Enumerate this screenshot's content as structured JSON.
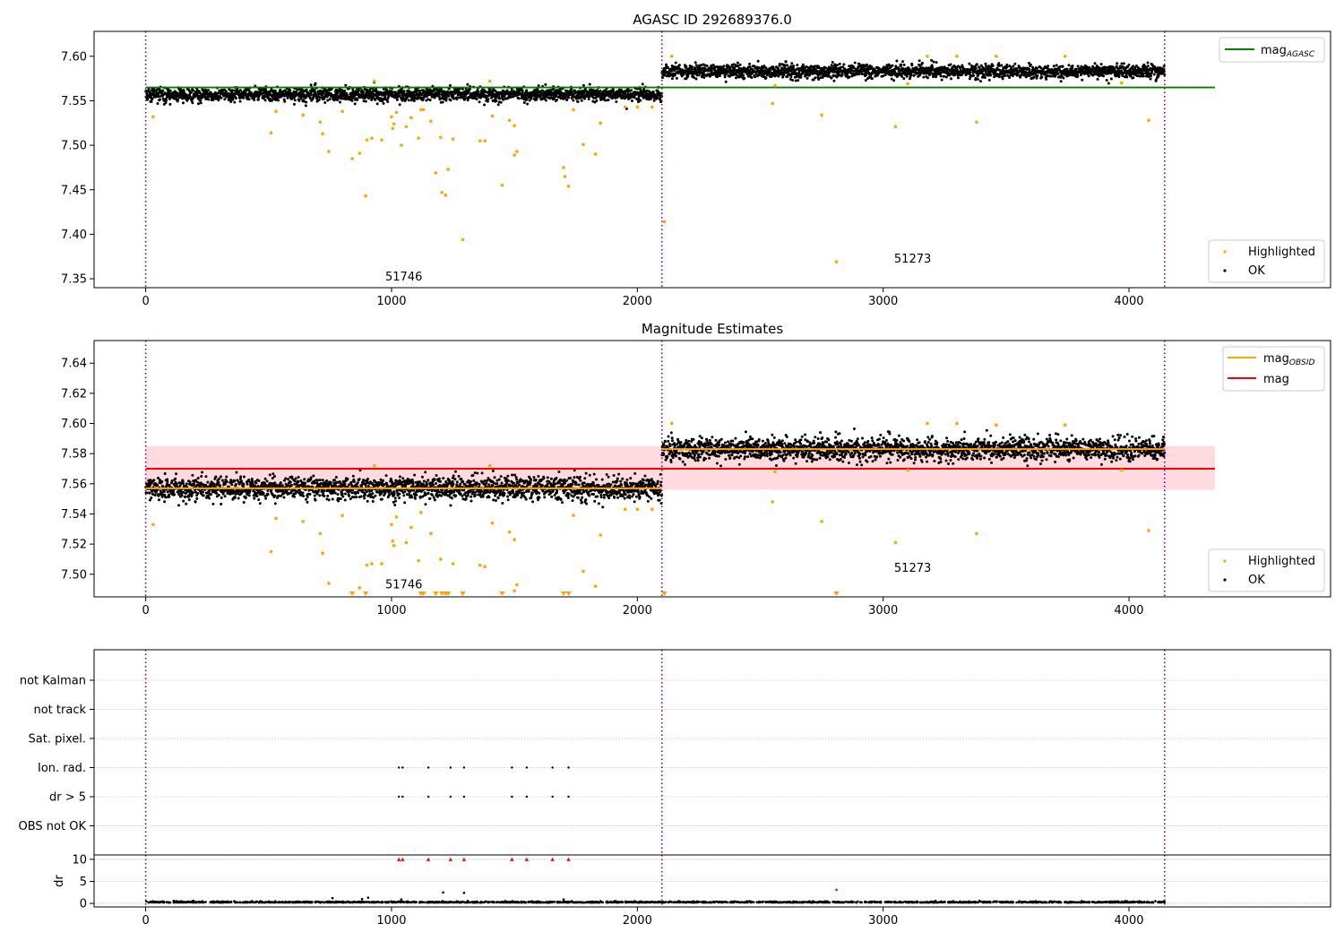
{
  "chart_data": [
    {
      "panel": "top",
      "type": "scatter",
      "title": "AGASC ID 292689376.0",
      "xlim": [
        -210,
        4820
      ],
      "ylim": [
        7.34,
        7.628
      ],
      "x_ticks": [
        0,
        1000,
        2000,
        3000,
        4000
      ],
      "y_ticks": [
        7.35,
        7.4,
        7.45,
        7.5,
        7.55,
        7.6
      ],
      "grid": false,
      "segments": [
        {
          "x_start": 0,
          "x_end": 2100,
          "ok_center": 7.557,
          "ok_spread": 0.0065,
          "label": "51746",
          "label_x": 1050,
          "label_y": 7.352
        },
        {
          "x_start": 2100,
          "x_end": 4145,
          "ok_center": 7.583,
          "ok_spread": 0.0065,
          "label": "51273",
          "label_x": 3120,
          "label_y": 7.372
        }
      ],
      "observation_boundaries": [
        0,
        2100,
        4145
      ],
      "lines": [
        {
          "name": "mag_AGASC",
          "y": 7.565,
          "x_range": [
            0,
            4350
          ],
          "color": "#008000"
        }
      ],
      "highlighted_points": [
        [
          30,
          7.532
        ],
        [
          510,
          7.514
        ],
        [
          530,
          7.538
        ],
        [
          640,
          7.534
        ],
        [
          710,
          7.526
        ],
        [
          720,
          7.513
        ],
        [
          745,
          7.493
        ],
        [
          800,
          7.538
        ],
        [
          840,
          7.485
        ],
        [
          870,
          7.491
        ],
        [
          895,
          7.443
        ],
        [
          900,
          7.506
        ],
        [
          920,
          7.508
        ],
        [
          930,
          7.572
        ],
        [
          960,
          7.506
        ],
        [
          1000,
          7.532
        ],
        [
          1005,
          7.519
        ],
        [
          1010,
          7.524
        ],
        [
          1020,
          7.537
        ],
        [
          1040,
          7.5
        ],
        [
          1060,
          7.521
        ],
        [
          1080,
          7.531
        ],
        [
          1110,
          7.508
        ],
        [
          1120,
          7.54
        ],
        [
          1130,
          7.54
        ],
        [
          1160,
          7.527
        ],
        [
          1180,
          7.469
        ],
        [
          1200,
          7.509
        ],
        [
          1205,
          7.447
        ],
        [
          1220,
          7.444
        ],
        [
          1230,
          7.473
        ],
        [
          1250,
          7.507
        ],
        [
          1290,
          7.394
        ],
        [
          1360,
          7.505
        ],
        [
          1380,
          7.505
        ],
        [
          1400,
          7.572
        ],
        [
          1410,
          7.533
        ],
        [
          1450,
          7.455
        ],
        [
          1480,
          7.528
        ],
        [
          1500,
          7.522
        ],
        [
          1500,
          7.489
        ],
        [
          1510,
          7.493
        ],
        [
          1700,
          7.475
        ],
        [
          1705,
          7.465
        ],
        [
          1720,
          7.454
        ],
        [
          1740,
          7.54
        ],
        [
          1780,
          7.501
        ],
        [
          1830,
          7.49
        ],
        [
          1850,
          7.525
        ],
        [
          1950,
          7.543
        ],
        [
          2000,
          7.543
        ],
        [
          2060,
          7.543
        ],
        [
          2110,
          7.414
        ],
        [
          2140,
          7.6
        ],
        [
          2550,
          7.547
        ],
        [
          2560,
          7.567
        ],
        [
          2750,
          7.534
        ],
        [
          2810,
          7.369
        ],
        [
          3050,
          7.521
        ],
        [
          3100,
          7.569
        ],
        [
          3180,
          7.6
        ],
        [
          3300,
          7.6
        ],
        [
          3380,
          7.526
        ],
        [
          3460,
          7.6
        ],
        [
          3740,
          7.6
        ],
        [
          3970,
          7.57
        ],
        [
          4080,
          7.528
        ]
      ],
      "legend": {
        "position": "top-right",
        "entries": [
          {
            "label": "mag",
            "subscript": "AGASC",
            "color": "#008000"
          }
        ]
      },
      "legend2": {
        "position": "bottom-right",
        "entries": [
          {
            "label": "Highlighted",
            "color": "#ffa500"
          },
          {
            "label": "OK",
            "color": "#000000"
          }
        ]
      }
    },
    {
      "panel": "middle",
      "type": "scatter",
      "title": "Magnitude Estimates",
      "xlim": [
        -210,
        4820
      ],
      "ylim": [
        7.485,
        7.655
      ],
      "x_ticks": [
        0,
        1000,
        2000,
        3000,
        4000
      ],
      "y_ticks": [
        7.5,
        7.52,
        7.54,
        7.56,
        7.58,
        7.6,
        7.62,
        7.64
      ],
      "grid": false,
      "segments": [
        {
          "x_start": 0,
          "x_end": 2100,
          "ok_center": 7.557,
          "ok_spread": 0.0065,
          "label": "51746",
          "label_x": 1050,
          "label_y": 7.493
        },
        {
          "x_start": 2100,
          "x_end": 4145,
          "ok_center": 7.583,
          "ok_spread": 0.0065,
          "label": "51273",
          "label_x": 3120,
          "label_y": 7.504
        }
      ],
      "observation_boundaries": [
        0,
        2100,
        4145
      ],
      "lines": [
        {
          "name": "mag_OBSID",
          "y": 7.557,
          "x_range": [
            0,
            2100
          ],
          "color": "#ffa500"
        },
        {
          "name": "mag_OBSID",
          "y": 7.583,
          "x_range": [
            2100,
            4145
          ],
          "color": "#ffa500"
        },
        {
          "name": "mag",
          "y": 7.57,
          "x_range": [
            0,
            4350
          ],
          "color": "#ff0000",
          "band": [
            7.556,
            7.585
          ]
        }
      ],
      "highlighted_points": [
        [
          30,
          7.533
        ],
        [
          510,
          7.515
        ],
        [
          530,
          7.537
        ],
        [
          640,
          7.535
        ],
        [
          710,
          7.527
        ],
        [
          720,
          7.514
        ],
        [
          745,
          7.494
        ],
        [
          800,
          7.539
        ],
        [
          870,
          7.491
        ],
        [
          900,
          7.506
        ],
        [
          920,
          7.507
        ],
        [
          930,
          7.572
        ],
        [
          960,
          7.507
        ],
        [
          1000,
          7.533
        ],
        [
          1005,
          7.522
        ],
        [
          1010,
          7.519
        ],
        [
          1020,
          7.538
        ],
        [
          1060,
          7.521
        ],
        [
          1080,
          7.531
        ],
        [
          1110,
          7.509
        ],
        [
          1120,
          7.541
        ],
        [
          1160,
          7.527
        ],
        [
          1200,
          7.51
        ],
        [
          1250,
          7.507
        ],
        [
          1360,
          7.506
        ],
        [
          1380,
          7.505
        ],
        [
          1400,
          7.572
        ],
        [
          1410,
          7.534
        ],
        [
          1480,
          7.528
        ],
        [
          1500,
          7.523
        ],
        [
          1500,
          7.489
        ],
        [
          1510,
          7.493
        ],
        [
          1740,
          7.539
        ],
        [
          1780,
          7.502
        ],
        [
          1830,
          7.492
        ],
        [
          1850,
          7.526
        ],
        [
          1950,
          7.543
        ],
        [
          2000,
          7.543
        ],
        [
          2060,
          7.543
        ],
        [
          2140,
          7.6
        ],
        [
          2550,
          7.548
        ],
        [
          2560,
          7.568
        ],
        [
          2750,
          7.535
        ],
        [
          3050,
          7.521
        ],
        [
          3100,
          7.569
        ],
        [
          3180,
          7.6
        ],
        [
          3300,
          7.6
        ],
        [
          3380,
          7.527
        ],
        [
          3460,
          7.599
        ],
        [
          3740,
          7.599
        ],
        [
          3970,
          7.569
        ],
        [
          4080,
          7.529
        ]
      ],
      "clipped_points_x": [
        840,
        895,
        1120,
        1130,
        1180,
        1205,
        1220,
        1230,
        1290,
        1450,
        1700,
        1720,
        2110,
        2810
      ],
      "legend": {
        "position": "top-right",
        "entries": [
          {
            "label": "mag",
            "subscript": "OBSID",
            "color": "#ffa500"
          },
          {
            "label": "mag",
            "color": "#ff0000"
          }
        ]
      },
      "legend2": {
        "position": "bottom-right",
        "entries": [
          {
            "label": "Highlighted",
            "color": "#ffa500"
          },
          {
            "label": "OK",
            "color": "#000000"
          }
        ]
      }
    },
    {
      "panel": "flags",
      "type": "scatter",
      "xlim": [
        -210,
        4820
      ],
      "x_ticks": [
        0,
        1000,
        2000,
        3000,
        4000
      ],
      "y_labels": [
        "not Kalman",
        "not track",
        "Sat. pixel.",
        "Ion. rad.",
        "dr > 5",
        "OBS not OK"
      ],
      "grid": true,
      "observation_boundaries": [
        0,
        2100,
        4145
      ],
      "flag_points": [
        {
          "flag": "Ion. rad.",
          "x": [
            1030,
            1045,
            1150,
            1240,
            1295,
            1490,
            1550,
            1655,
            1720
          ]
        },
        {
          "flag": "dr > 5",
          "x": [
            1030,
            1045,
            1150,
            1240,
            1295,
            1490,
            1550,
            1655,
            1720
          ]
        }
      ]
    },
    {
      "panel": "dr",
      "type": "scatter",
      "ylabel": "dr",
      "xlim": [
        -210,
        4820
      ],
      "ylim": [
        -0.8,
        11
      ],
      "x_ticks": [
        0,
        1000,
        2000,
        3000,
        4000
      ],
      "y_ticks": [
        0,
        5,
        10
      ],
      "grid": true,
      "observation_boundaries": [
        0,
        2100,
        4145
      ],
      "dr_baseline": 0.2,
      "outliers": [
        [
          760,
          1.2
        ],
        [
          880,
          1.0
        ],
        [
          905,
          1.3
        ],
        [
          1040,
          0.9
        ],
        [
          1210,
          2.5
        ],
        [
          1295,
          2.4
        ],
        [
          1700,
          0.9
        ],
        [
          2810,
          3.1
        ]
      ],
      "capped_points_x": [
        1030,
        1045,
        1150,
        1240,
        1295,
        1490,
        1550,
        1655,
        1720
      ]
    }
  ]
}
